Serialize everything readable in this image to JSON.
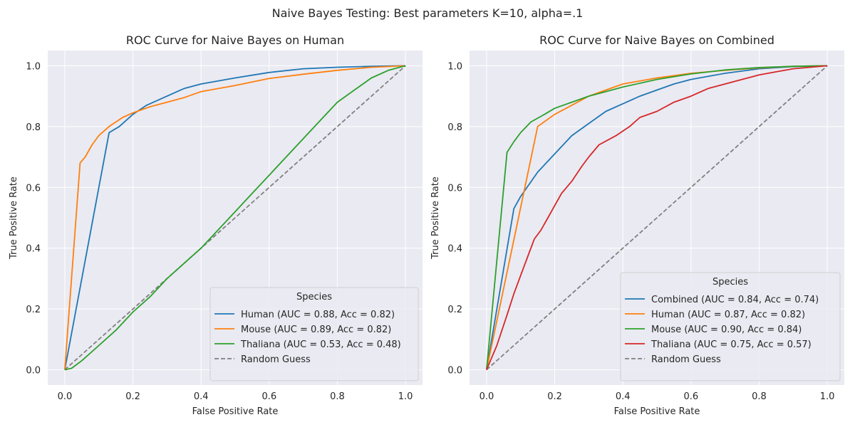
{
  "suptitle": "Naive Bayes Testing: Best parameters K=10, alpha=.1",
  "chart_data": [
    {
      "type": "line",
      "title": "ROC Curve for Naive Bayes on Human",
      "xlabel": "False Positive Rate",
      "ylabel": "True Positive Rate",
      "xlim": [
        -0.05,
        1.05
      ],
      "ylim": [
        -0.05,
        1.05
      ],
      "xticks": [
        0.0,
        0.2,
        0.4,
        0.6,
        0.8,
        1.0
      ],
      "yticks": [
        0.0,
        0.2,
        0.4,
        0.6,
        0.8,
        1.0
      ],
      "tick_labels": [
        "0.0",
        "0.2",
        "0.4",
        "0.6",
        "0.8",
        "1.0"
      ],
      "grid": true,
      "legend": {
        "title": "Species",
        "placement": "lower right"
      },
      "series": [
        {
          "name": "Human (AUC = 0.88, Acc = 0.82)",
          "color": "#1f77b4",
          "points": [
            [
              0,
              0
            ],
            [
              0.13,
              0.78
            ],
            [
              0.16,
              0.8
            ],
            [
              0.2,
              0.84
            ],
            [
              0.24,
              0.87
            ],
            [
              0.3,
              0.9
            ],
            [
              0.35,
              0.925
            ],
            [
              0.4,
              0.94
            ],
            [
              0.5,
              0.96
            ],
            [
              0.6,
              0.978
            ],
            [
              0.7,
              0.99
            ],
            [
              0.8,
              0.995
            ],
            [
              0.9,
              0.998
            ],
            [
              1,
              1
            ]
          ]
        },
        {
          "name": "Mouse (AUC = 0.89, Acc = 0.82)",
          "color": "#ff7f0e",
          "points": [
            [
              0,
              0
            ],
            [
              0.045,
              0.68
            ],
            [
              0.06,
              0.7
            ],
            [
              0.08,
              0.74
            ],
            [
              0.1,
              0.77
            ],
            [
              0.13,
              0.8
            ],
            [
              0.17,
              0.83
            ],
            [
              0.2,
              0.845
            ],
            [
              0.25,
              0.865
            ],
            [
              0.3,
              0.88
            ],
            [
              0.35,
              0.895
            ],
            [
              0.4,
              0.915
            ],
            [
              0.5,
              0.935
            ],
            [
              0.6,
              0.958
            ],
            [
              0.7,
              0.972
            ],
            [
              0.8,
              0.985
            ],
            [
              0.9,
              0.995
            ],
            [
              1,
              1
            ]
          ]
        },
        {
          "name": "Thaliana (AUC = 0.53, Acc = 0.48)",
          "color": "#2ca02c",
          "points": [
            [
              0,
              0
            ],
            [
              0.02,
              0.005
            ],
            [
              0.05,
              0.03
            ],
            [
              0.1,
              0.08
            ],
            [
              0.15,
              0.13
            ],
            [
              0.2,
              0.19
            ],
            [
              0.25,
              0.24
            ],
            [
              0.3,
              0.3
            ],
            [
              0.35,
              0.35
            ],
            [
              0.4,
              0.4
            ],
            [
              0.45,
              0.46
            ],
            [
              0.5,
              0.52
            ],
            [
              0.55,
              0.58
            ],
            [
              0.6,
              0.64
            ],
            [
              0.65,
              0.7
            ],
            [
              0.7,
              0.76
            ],
            [
              0.75,
              0.82
            ],
            [
              0.8,
              0.88
            ],
            [
              0.85,
              0.92
            ],
            [
              0.9,
              0.96
            ],
            [
              0.95,
              0.985
            ],
            [
              1,
              1
            ]
          ]
        },
        {
          "name": "Random Guess",
          "color": "#808080",
          "dashed": true,
          "points": [
            [
              0,
              0
            ],
            [
              1,
              1
            ]
          ]
        }
      ]
    },
    {
      "type": "line",
      "title": "ROC Curve for Naive Bayes on Combined",
      "xlabel": "False Positive Rate",
      "ylabel": "True Positive Rate",
      "xlim": [
        -0.05,
        1.05
      ],
      "ylim": [
        -0.05,
        1.05
      ],
      "xticks": [
        0.0,
        0.2,
        0.4,
        0.6,
        0.8,
        1.0
      ],
      "yticks": [
        0.0,
        0.2,
        0.4,
        0.6,
        0.8,
        1.0
      ],
      "tick_labels": [
        "0.0",
        "0.2",
        "0.4",
        "0.6",
        "0.8",
        "1.0"
      ],
      "grid": true,
      "legend": {
        "title": "Species",
        "placement": "lower right"
      },
      "series": [
        {
          "name": "Combined (AUC = 0.84, Acc = 0.74)",
          "color": "#1f77b4",
          "points": [
            [
              0,
              0
            ],
            [
              0.08,
              0.53
            ],
            [
              0.1,
              0.57
            ],
            [
              0.15,
              0.65
            ],
            [
              0.2,
              0.71
            ],
            [
              0.25,
              0.77
            ],
            [
              0.3,
              0.81
            ],
            [
              0.35,
              0.85
            ],
            [
              0.4,
              0.875
            ],
            [
              0.45,
              0.9
            ],
            [
              0.5,
              0.92
            ],
            [
              0.55,
              0.94
            ],
            [
              0.6,
              0.955
            ],
            [
              0.7,
              0.975
            ],
            [
              0.8,
              0.99
            ],
            [
              0.9,
              0.997
            ],
            [
              1,
              1
            ]
          ]
        },
        {
          "name": "Human (AUC = 0.87, Acc = 0.82)",
          "color": "#ff7f0e",
          "points": [
            [
              0,
              0
            ],
            [
              0.15,
              0.8
            ],
            [
              0.2,
              0.84
            ],
            [
              0.25,
              0.87
            ],
            [
              0.3,
              0.9
            ],
            [
              0.35,
              0.92
            ],
            [
              0.4,
              0.94
            ],
            [
              0.5,
              0.96
            ],
            [
              0.6,
              0.975
            ],
            [
              0.7,
              0.985
            ],
            [
              0.8,
              0.993
            ],
            [
              0.9,
              0.998
            ],
            [
              1,
              1
            ]
          ]
        },
        {
          "name": "Mouse (AUC = 0.90, Acc = 0.84)",
          "color": "#2ca02c",
          "points": [
            [
              0,
              0
            ],
            [
              0.06,
              0.715
            ],
            [
              0.08,
              0.75
            ],
            [
              0.1,
              0.78
            ],
            [
              0.13,
              0.815
            ],
            [
              0.17,
              0.84
            ],
            [
              0.2,
              0.86
            ],
            [
              0.25,
              0.88
            ],
            [
              0.3,
              0.9
            ],
            [
              0.35,
              0.915
            ],
            [
              0.4,
              0.93
            ],
            [
              0.5,
              0.955
            ],
            [
              0.6,
              0.973
            ],
            [
              0.7,
              0.986
            ],
            [
              0.8,
              0.994
            ],
            [
              0.9,
              0.998
            ],
            [
              1,
              1
            ]
          ]
        },
        {
          "name": "Thaliana (AUC = 0.75, Acc = 0.57)",
          "color": "#d62728",
          "points": [
            [
              0,
              0
            ],
            [
              0.03,
              0.08
            ],
            [
              0.06,
              0.18
            ],
            [
              0.08,
              0.25
            ],
            [
              0.1,
              0.31
            ],
            [
              0.12,
              0.37
            ],
            [
              0.14,
              0.43
            ],
            [
              0.16,
              0.46
            ],
            [
              0.18,
              0.5
            ],
            [
              0.2,
              0.54
            ],
            [
              0.22,
              0.58
            ],
            [
              0.25,
              0.62
            ],
            [
              0.28,
              0.67
            ],
            [
              0.3,
              0.7
            ],
            [
              0.33,
              0.74
            ],
            [
              0.38,
              0.77
            ],
            [
              0.42,
              0.8
            ],
            [
              0.45,
              0.83
            ],
            [
              0.5,
              0.85
            ],
            [
              0.55,
              0.88
            ],
            [
              0.6,
              0.9
            ],
            [
              0.65,
              0.925
            ],
            [
              0.7,
              0.94
            ],
            [
              0.75,
              0.955
            ],
            [
              0.8,
              0.97
            ],
            [
              0.85,
              0.98
            ],
            [
              0.9,
              0.99
            ],
            [
              0.95,
              0.995
            ],
            [
              1,
              1
            ]
          ]
        },
        {
          "name": "Random Guess",
          "color": "#808080",
          "dashed": true,
          "points": [
            [
              0,
              0
            ],
            [
              1,
              1
            ]
          ]
        }
      ]
    }
  ]
}
